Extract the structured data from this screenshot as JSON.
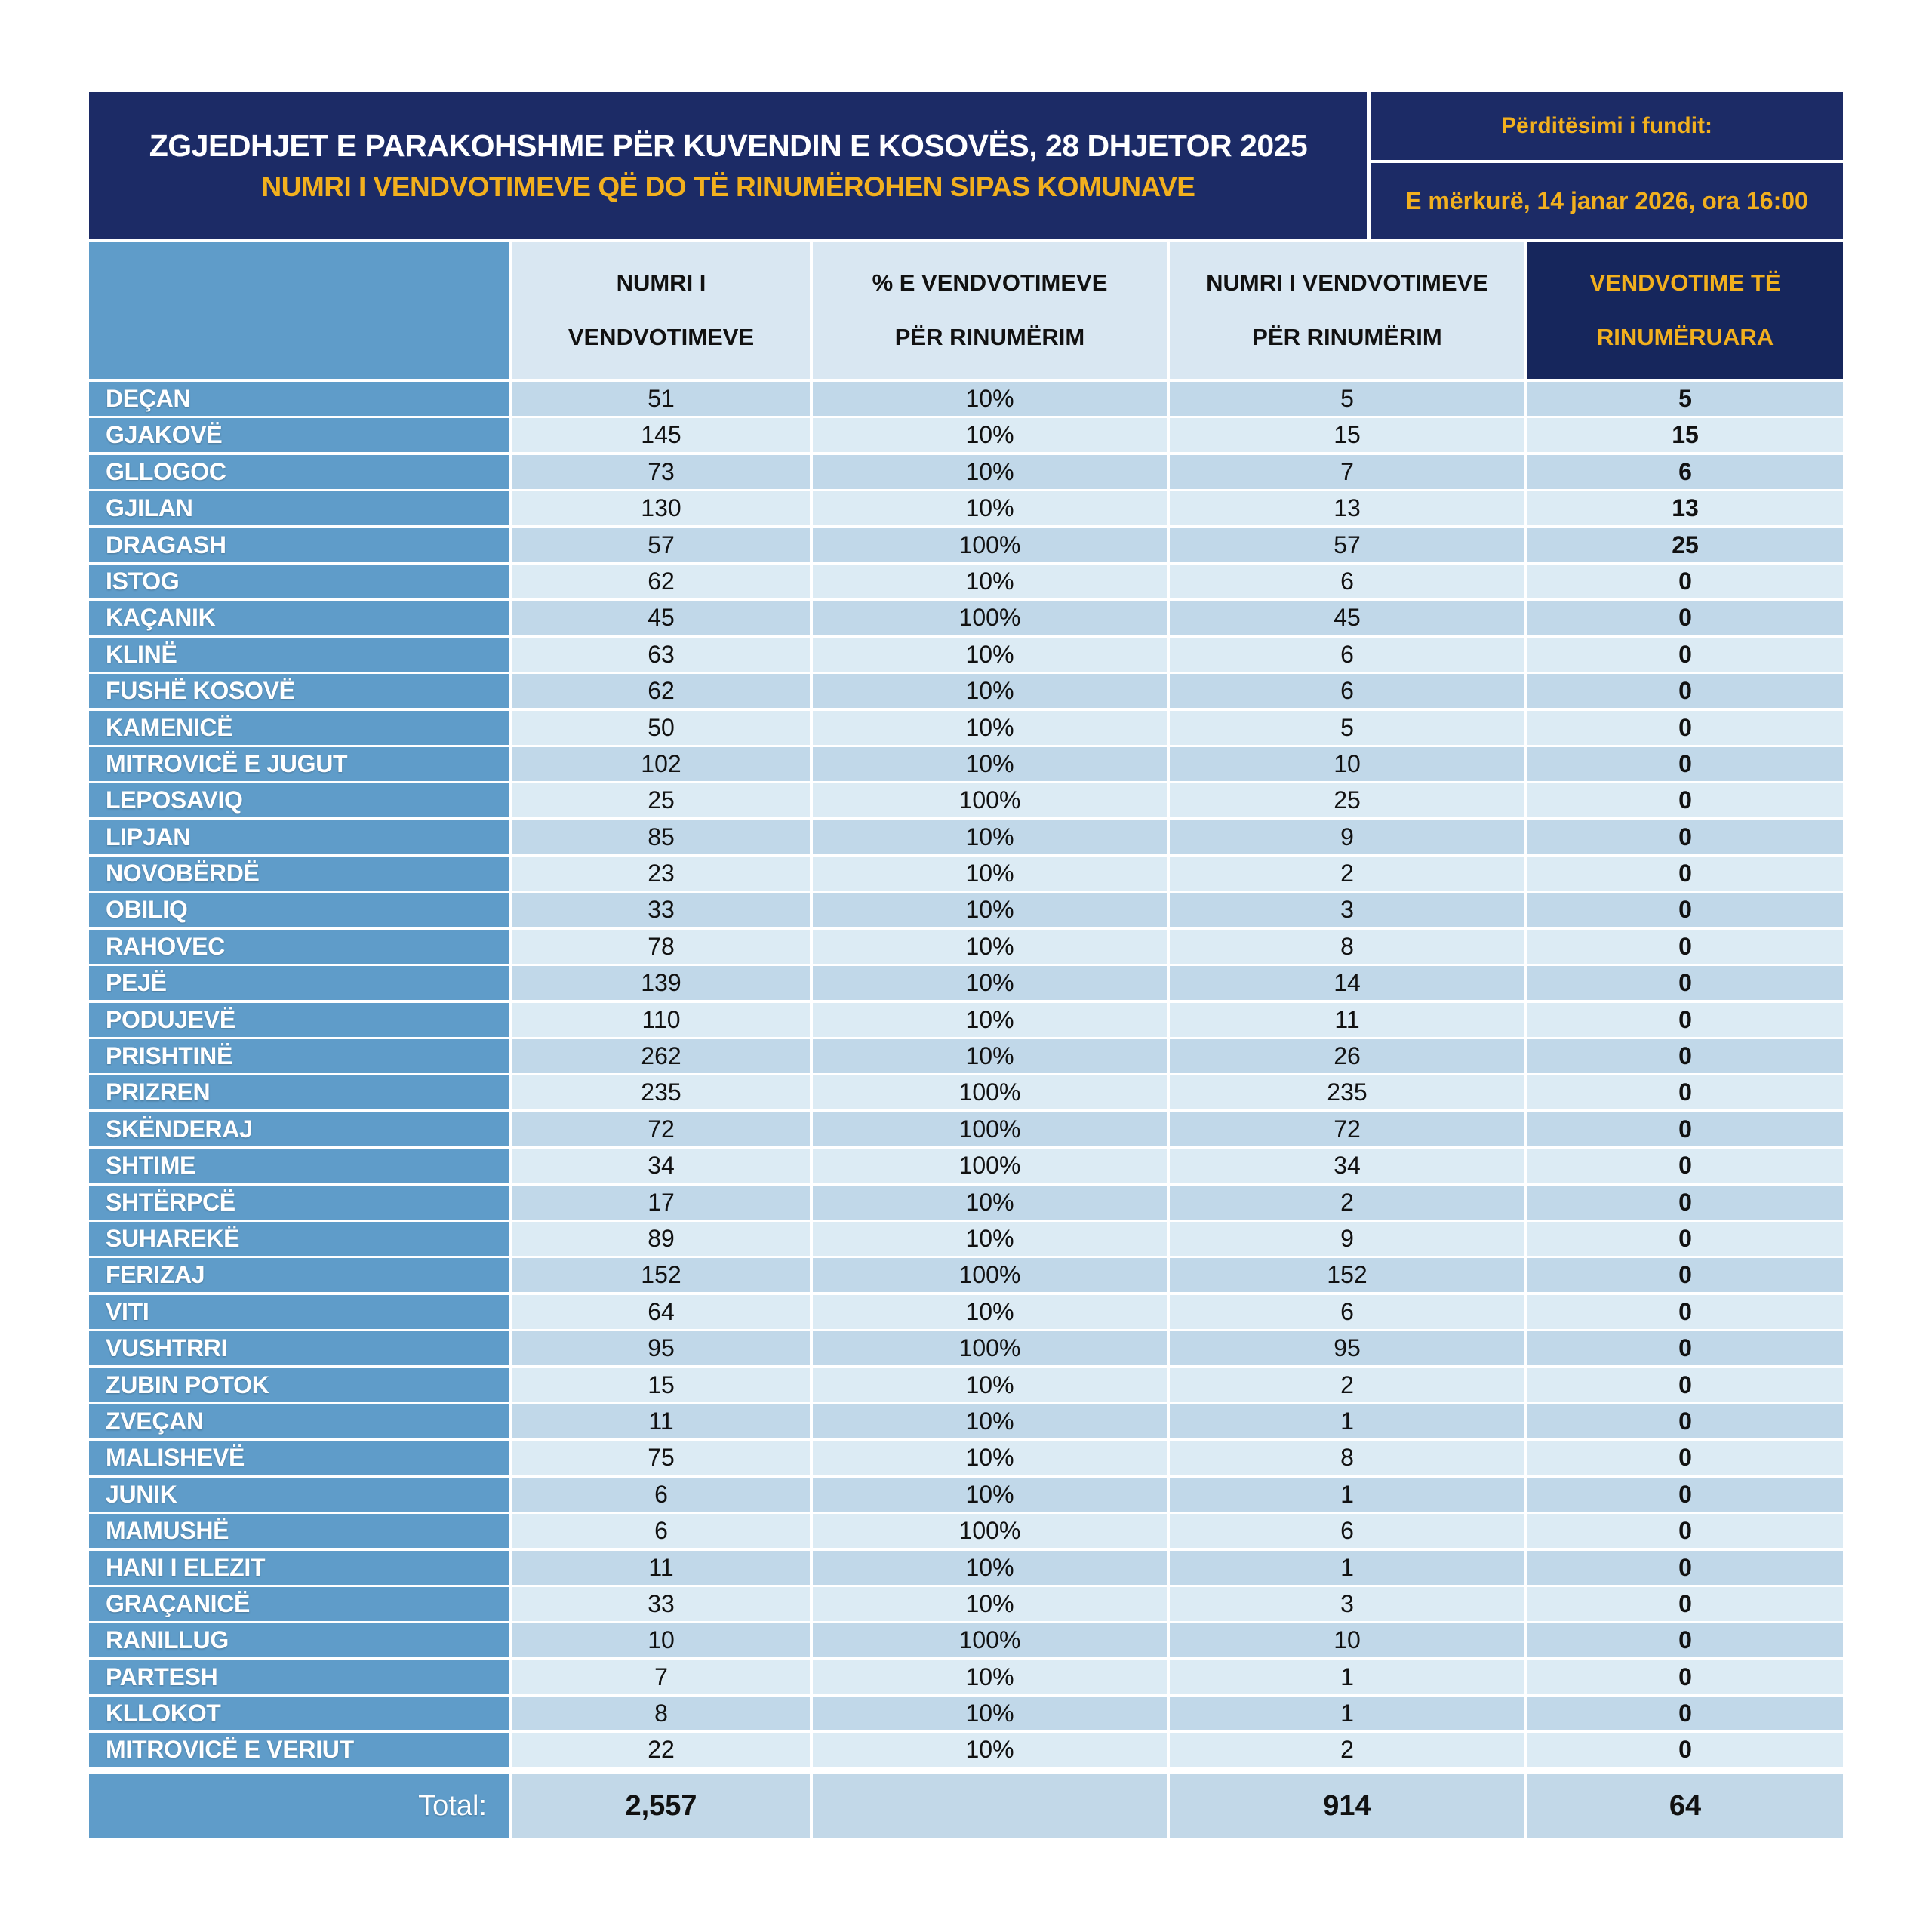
{
  "header": {
    "title": "ZGJEDHJET E PARAKOHSHME PËR KUVENDIN E KOSOVËS, 28 DHJETOR 2025",
    "subtitle": "NUMRI I VENDVOTIMEVE QË DO TË RINUMËROHEN SIPAS KOMUNAVE",
    "update_label": "Përditësimi i fundit:",
    "update_value": "E mërkurë, 14 janar 2026, ora 16:00"
  },
  "colors": {
    "navy": "#1c2b66",
    "gold": "#f2b01e",
    "municipality_blue": "#5f9cc9",
    "row_dark": "#c1d8e9",
    "row_light": "#dcebf4",
    "header_cell": "#d9e7f2",
    "total_row": "#c2d8e8"
  },
  "table": {
    "columns": [
      {
        "line1": "",
        "line2": ""
      },
      {
        "line1": "NUMRI I",
        "line2": "VENDVOTIMEVE"
      },
      {
        "line1": "% E VENDVOTIMEVE",
        "line2": "PËR RINUMËRIM"
      },
      {
        "line1": "NUMRI I VENDVOTIMEVE",
        "line2": "PËR RINUMËRIM"
      },
      {
        "line1": "VENDVOTIME TË",
        "line2": "RINUMËRUARA"
      }
    ],
    "rows": [
      {
        "name": "DEÇAN",
        "total_ps": "51",
        "pct": "10%",
        "for_recount": "5",
        "recounted": "5"
      },
      {
        "name": "GJAKOVË",
        "total_ps": "145",
        "pct": "10%",
        "for_recount": "15",
        "recounted": "15"
      },
      {
        "name": "GLLOGOC",
        "total_ps": "73",
        "pct": "10%",
        "for_recount": "7",
        "recounted": "6"
      },
      {
        "name": "GJILAN",
        "total_ps": "130",
        "pct": "10%",
        "for_recount": "13",
        "recounted": "13"
      },
      {
        "name": "DRAGASH",
        "total_ps": "57",
        "pct": "100%",
        "for_recount": "57",
        "recounted": "25"
      },
      {
        "name": "ISTOG",
        "total_ps": "62",
        "pct": "10%",
        "for_recount": "6",
        "recounted": "0"
      },
      {
        "name": "KAÇANIK",
        "total_ps": "45",
        "pct": "100%",
        "for_recount": "45",
        "recounted": "0"
      },
      {
        "name": "KLINË",
        "total_ps": "63",
        "pct": "10%",
        "for_recount": "6",
        "recounted": "0"
      },
      {
        "name": "FUSHË KOSOVË",
        "total_ps": "62",
        "pct": "10%",
        "for_recount": "6",
        "recounted": "0"
      },
      {
        "name": "KAMENICË",
        "total_ps": "50",
        "pct": "10%",
        "for_recount": "5",
        "recounted": "0"
      },
      {
        "name": "MITROVICË E JUGUT",
        "total_ps": "102",
        "pct": "10%",
        "for_recount": "10",
        "recounted": "0"
      },
      {
        "name": "LEPOSAVIQ",
        "total_ps": "25",
        "pct": "100%",
        "for_recount": "25",
        "recounted": "0"
      },
      {
        "name": "LIPJAN",
        "total_ps": "85",
        "pct": "10%",
        "for_recount": "9",
        "recounted": "0"
      },
      {
        "name": "NOVOBËRDË",
        "total_ps": "23",
        "pct": "10%",
        "for_recount": "2",
        "recounted": "0"
      },
      {
        "name": "OBILIQ",
        "total_ps": "33",
        "pct": "10%",
        "for_recount": "3",
        "recounted": "0"
      },
      {
        "name": "RAHOVEC",
        "total_ps": "78",
        "pct": "10%",
        "for_recount": "8",
        "recounted": "0"
      },
      {
        "name": "PEJË",
        "total_ps": "139",
        "pct": "10%",
        "for_recount": "14",
        "recounted": "0"
      },
      {
        "name": "PODUJEVË",
        "total_ps": "110",
        "pct": "10%",
        "for_recount": "11",
        "recounted": "0"
      },
      {
        "name": "PRISHTINË",
        "total_ps": "262",
        "pct": "10%",
        "for_recount": "26",
        "recounted": "0"
      },
      {
        "name": "PRIZREN",
        "total_ps": "235",
        "pct": "100%",
        "for_recount": "235",
        "recounted": "0"
      },
      {
        "name": "SKËNDERAJ",
        "total_ps": "72",
        "pct": "100%",
        "for_recount": "72",
        "recounted": "0"
      },
      {
        "name": "SHTIME",
        "total_ps": "34",
        "pct": "100%",
        "for_recount": "34",
        "recounted": "0"
      },
      {
        "name": "SHTËRPCË",
        "total_ps": "17",
        "pct": "10%",
        "for_recount": "2",
        "recounted": "0"
      },
      {
        "name": "SUHAREKË",
        "total_ps": "89",
        "pct": "10%",
        "for_recount": "9",
        "recounted": "0"
      },
      {
        "name": "FERIZAJ",
        "total_ps": "152",
        "pct": "100%",
        "for_recount": "152",
        "recounted": "0"
      },
      {
        "name": "VITI",
        "total_ps": "64",
        "pct": "10%",
        "for_recount": "6",
        "recounted": "0"
      },
      {
        "name": "VUSHTRRI",
        "total_ps": "95",
        "pct": "100%",
        "for_recount": "95",
        "recounted": "0"
      },
      {
        "name": "ZUBIN POTOK",
        "total_ps": "15",
        "pct": "10%",
        "for_recount": "2",
        "recounted": "0"
      },
      {
        "name": "ZVEÇAN",
        "total_ps": "11",
        "pct": "10%",
        "for_recount": "1",
        "recounted": "0"
      },
      {
        "name": "MALISHEVË",
        "total_ps": "75",
        "pct": "10%",
        "for_recount": "8",
        "recounted": "0"
      },
      {
        "name": "JUNIK",
        "total_ps": "6",
        "pct": "10%",
        "for_recount": "1",
        "recounted": "0"
      },
      {
        "name": "MAMUSHË",
        "total_ps": "6",
        "pct": "100%",
        "for_recount": "6",
        "recounted": "0"
      },
      {
        "name": "HANI I ELEZIT",
        "total_ps": "11",
        "pct": "10%",
        "for_recount": "1",
        "recounted": "0"
      },
      {
        "name": "GRAÇANICË",
        "total_ps": "33",
        "pct": "10%",
        "for_recount": "3",
        "recounted": "0"
      },
      {
        "name": "RANILLUG",
        "total_ps": "10",
        "pct": "100%",
        "for_recount": "10",
        "recounted": "0"
      },
      {
        "name": "PARTESH",
        "total_ps": "7",
        "pct": "10%",
        "for_recount": "1",
        "recounted": "0"
      },
      {
        "name": "KLLOKOT",
        "total_ps": "8",
        "pct": "10%",
        "for_recount": "1",
        "recounted": "0"
      },
      {
        "name": "MITROVICË E VERIUT",
        "total_ps": "22",
        "pct": "10%",
        "for_recount": "2",
        "recounted": "0"
      }
    ],
    "total": {
      "label": "Total:",
      "total_ps": "2,557",
      "pct": "",
      "for_recount": "914",
      "recounted": "64"
    }
  }
}
